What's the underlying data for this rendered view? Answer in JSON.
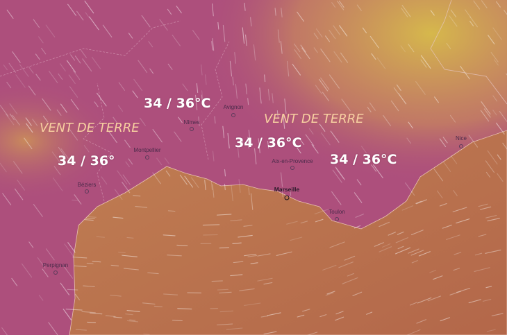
{
  "colors": {
    "land": "#ad4f7c",
    "land_warm": "#c98a5c",
    "land_yellow": "#cfb24e",
    "sea": "#b86e4b",
    "wind": "#ffffff"
  },
  "annotations": {
    "temp_1": "34 / 36°C",
    "vent_1": "VENT DE TERRE",
    "temp_2": "34 / 36°",
    "vent_2": "VENT DE TERRE",
    "temp_3": "34 / 36°C",
    "temp_4": "34 / 36°C"
  },
  "cities": [
    {
      "name": "Avignon"
    },
    {
      "name": "Nîmes"
    },
    {
      "name": "Montpellier"
    },
    {
      "name": "Béziers"
    },
    {
      "name": "Perpignan"
    },
    {
      "name": "Aix-en-Provence"
    },
    {
      "name": "Marseille"
    },
    {
      "name": "Toulon"
    },
    {
      "name": "Nice"
    }
  ]
}
